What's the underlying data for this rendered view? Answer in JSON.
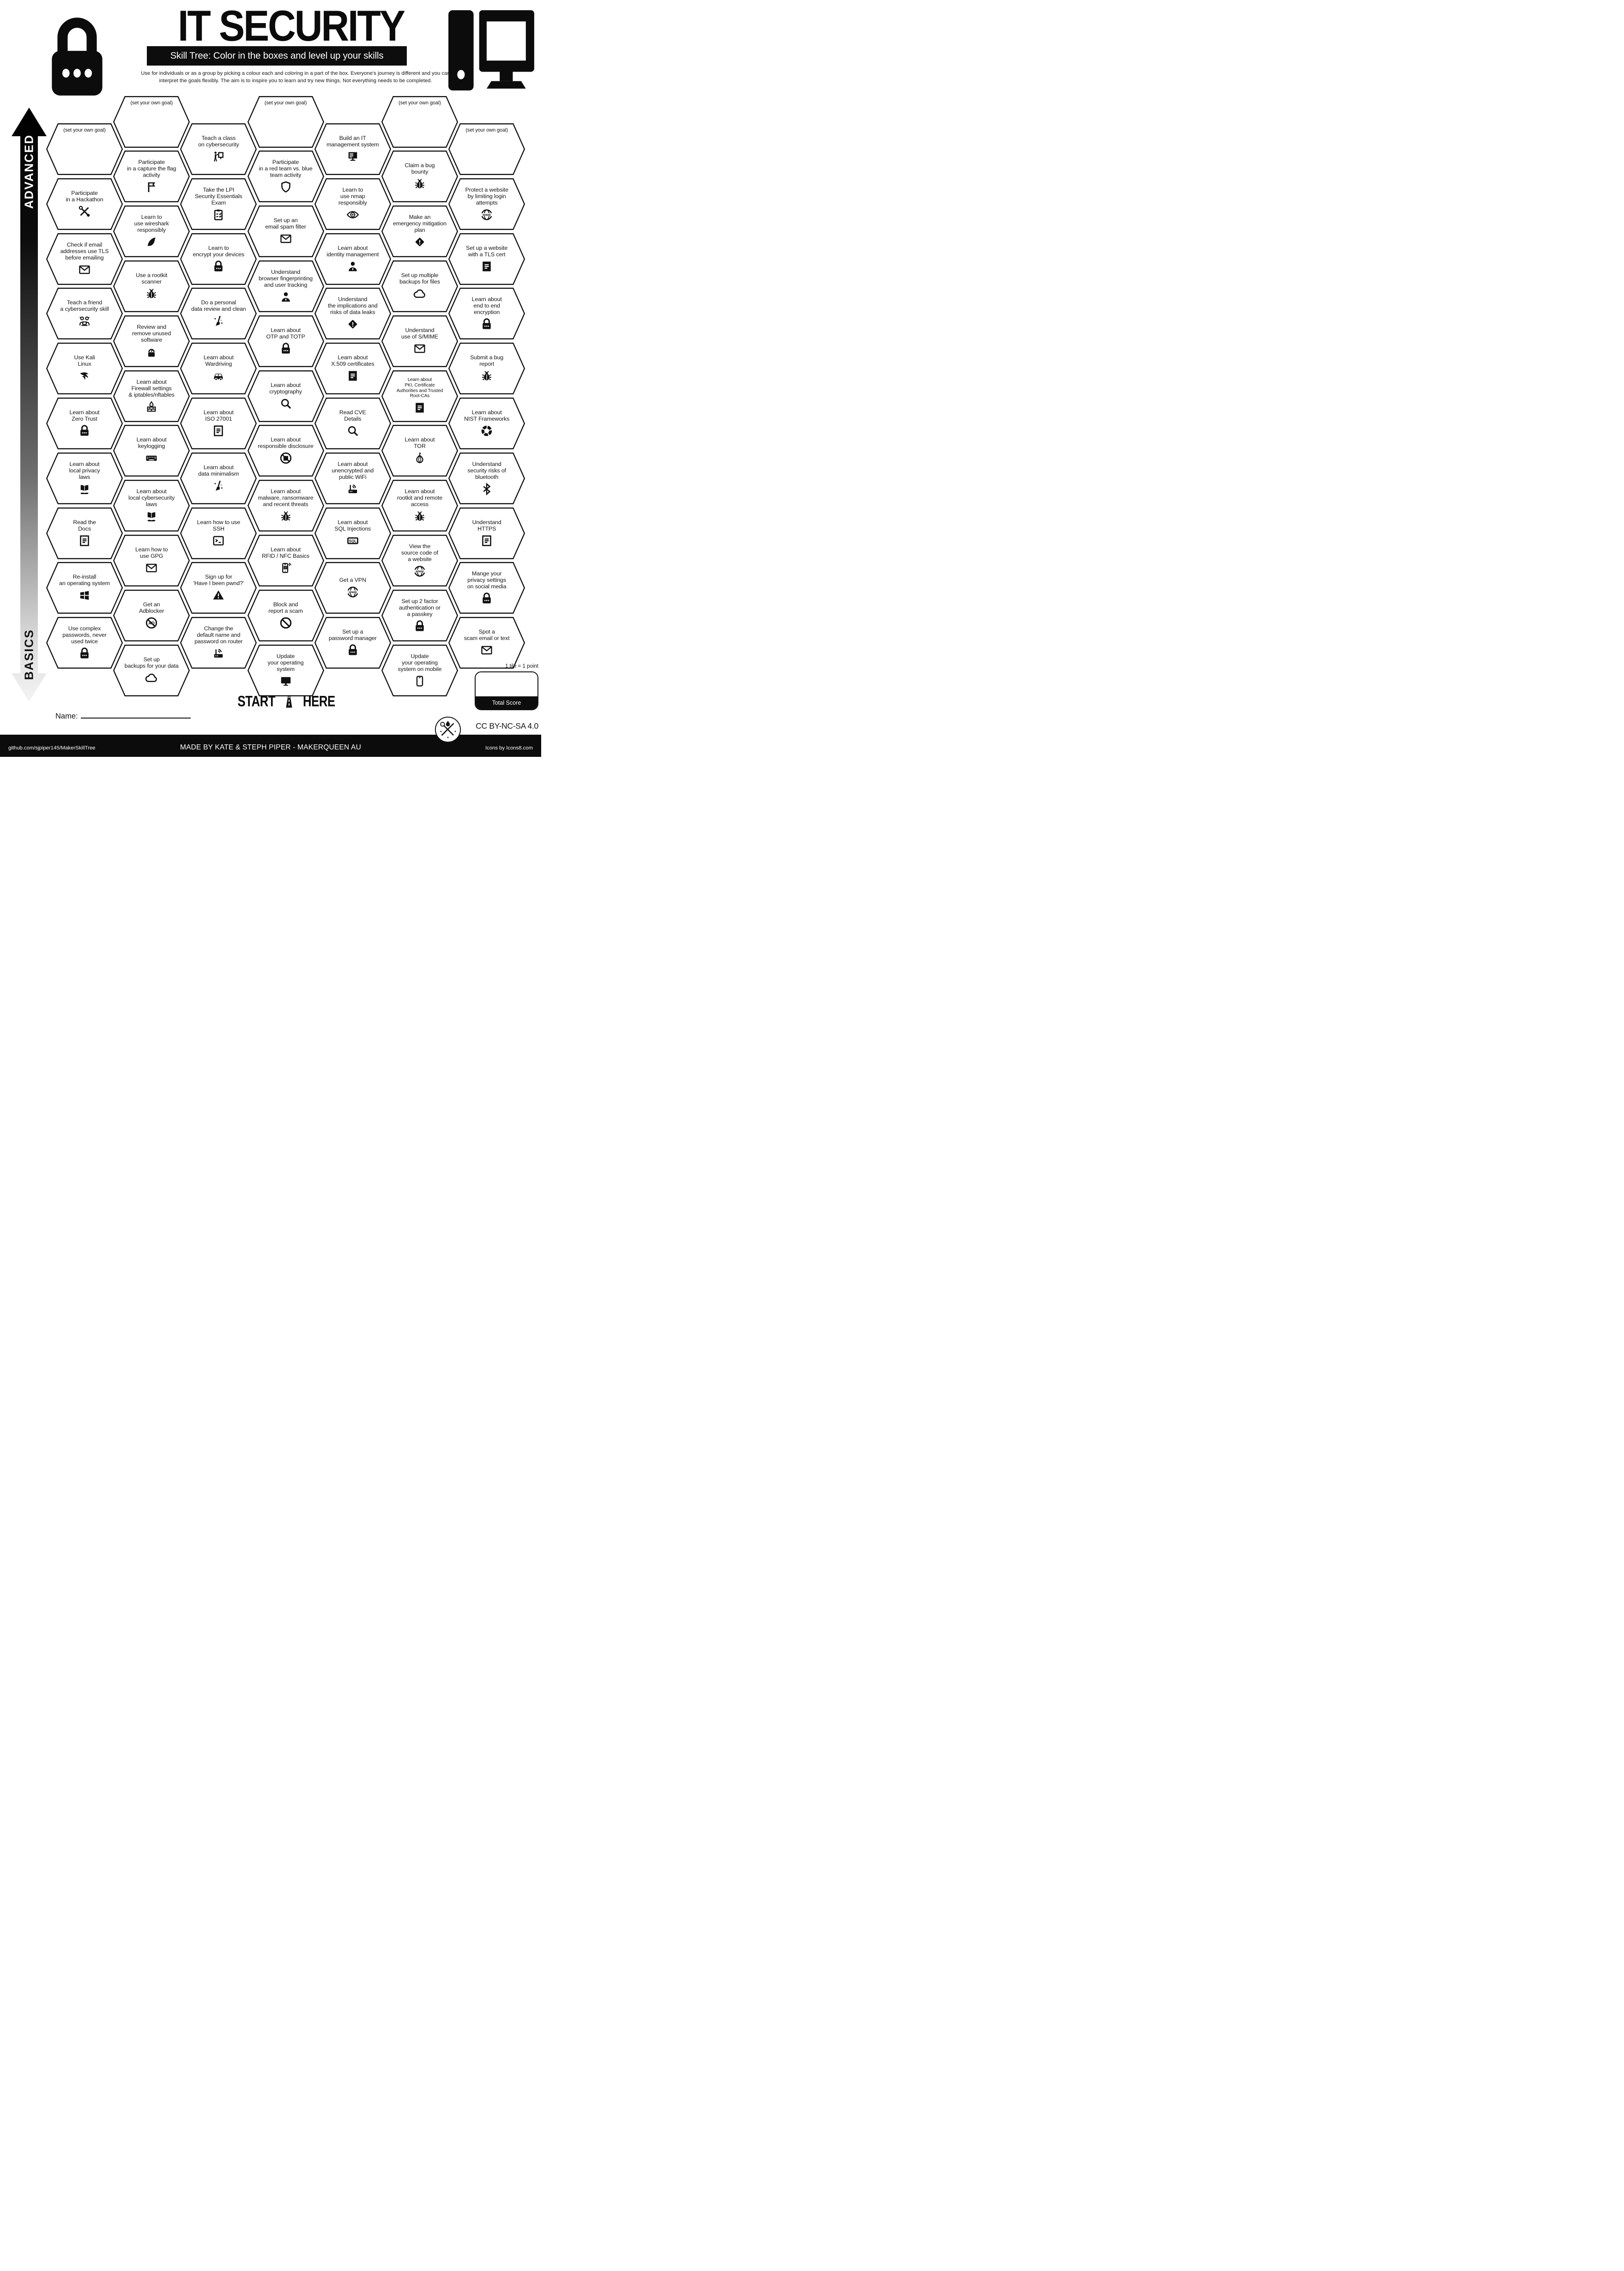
{
  "header": {
    "title": "IT SECURITY",
    "subtitle": "Skill Tree:  Color in the boxes and level up your skills",
    "description_line1": "Use for individuals or as a group by picking a colour each and coloring in a part of the box.  Everyone's journey is different and you can",
    "description_line2": "interpret the goals flexibly.  The aim is to inspire you to learn and try new things. Not everything needs to be completed."
  },
  "axis": {
    "top_label": "ADVANCED",
    "bottom_label": "BASICS"
  },
  "start_marker": {
    "start_label": "START",
    "here_label": "HERE"
  },
  "name_field": {
    "label": "Name:"
  },
  "scoring": {
    "note": "1 tile = 1 point",
    "total_label": "Total Score"
  },
  "license": {
    "text": "CC BY-NC-SA 4.0"
  },
  "footer": {
    "left": "github.com/sjpiper145/MakerSkillTree",
    "center": "MADE BY KATE & STEPH PIPER  -  MAKERQUEEN AU",
    "right": "Icons by Icons8.com"
  },
  "colors": {
    "ink": "#0d0d0d",
    "paper": "#ffffff"
  },
  "hexes": [
    {
      "c": 1,
      "r": 0,
      "goal": true,
      "text": "(set your own goal)",
      "icon": null
    },
    {
      "c": 1,
      "r": 1,
      "text": "Participate\nin a Hackathon",
      "icon": "tools"
    },
    {
      "c": 1,
      "r": 2,
      "text": "Check if email\naddresses use TLS\nbefore emailing",
      "icon": "envelope"
    },
    {
      "c": 1,
      "r": 3,
      "text": "Teach a friend\na cybersecurity skill",
      "icon": "people"
    },
    {
      "c": 1,
      "r": 4,
      "text": "Use Kali\nLinux",
      "icon": "kali"
    },
    {
      "c": 1,
      "r": 5,
      "text": "Learn about\nZero Trust",
      "icon": "lock"
    },
    {
      "c": 1,
      "r": 6,
      "text": "Learn about\nlocal privacy\nlaws",
      "icon": "lawbook"
    },
    {
      "c": 1,
      "r": 7,
      "text": "Read the\nDocs",
      "icon": "doc"
    },
    {
      "c": 1,
      "r": 8,
      "text": "Re-install\nan operating system",
      "icon": "windows"
    },
    {
      "c": 1,
      "r": 9,
      "text": "Use complex\npasswords, never\nused twice",
      "icon": "lock"
    },
    {
      "c": 2,
      "r": 0,
      "goal": true,
      "text": "(set your own goal)",
      "icon": null
    },
    {
      "c": 2,
      "r": 1,
      "text": "Participate\nin a capture the flag\nactivity",
      "icon": "flag"
    },
    {
      "c": 2,
      "r": 2,
      "text": "Learn to\nuse wireshark\nresponsibly",
      "icon": "shark"
    },
    {
      "c": 2,
      "r": 3,
      "text": "Use a rootkit\nscanner",
      "icon": "bug"
    },
    {
      "c": 2,
      "r": 4,
      "text": "Review and\nremove unused\nsoftware",
      "icon": "gaugelock"
    },
    {
      "c": 2,
      "r": 5,
      "text": "Learn about\nFirewall settings\n& iptables/nftables",
      "icon": "firewall"
    },
    {
      "c": 2,
      "r": 6,
      "text": "Learn about\nkeylogging",
      "icon": "keyboard"
    },
    {
      "c": 2,
      "r": 7,
      "text": "Learn about\nlocal cybersecurity\nlaws",
      "icon": "lawbook"
    },
    {
      "c": 2,
      "r": 8,
      "text": "Learn how to\nuse GPG",
      "icon": "envelope"
    },
    {
      "c": 2,
      "r": 9,
      "text": "Get an\nAdblocker",
      "icon": "adblock"
    },
    {
      "c": 2,
      "r": 10,
      "text": "Set up\nbackups for your data",
      "icon": "cloud"
    },
    {
      "c": 3,
      "r": 0,
      "text": "Teach a class\non cybersecurity",
      "icon": "presenter"
    },
    {
      "c": 3,
      "r": 1,
      "text": "Take the LPI\nSecurity Essentials\nExam",
      "icon": "clipboard"
    },
    {
      "c": 3,
      "r": 2,
      "text": "Learn to\nencrypt your devices",
      "icon": "lock"
    },
    {
      "c": 3,
      "r": 3,
      "text": "Do a personal\ndata review and clean",
      "icon": "broom"
    },
    {
      "c": 3,
      "r": 4,
      "text": "Learn about\nWardriving",
      "icon": "car"
    },
    {
      "c": 3,
      "r": 5,
      "text": "Learn about\nISO 27001",
      "icon": "doc"
    },
    {
      "c": 3,
      "r": 6,
      "text": "Learn about\ndata minimalism",
      "icon": "broom"
    },
    {
      "c": 3,
      "r": 7,
      "text": "Learn how to use\nSSH",
      "icon": "terminal"
    },
    {
      "c": 3,
      "r": 8,
      "text": "Sign up for\n'Have I been pwnd?'",
      "icon": "warning"
    },
    {
      "c": 3,
      "r": 9,
      "text": "Change the\ndefault name and\npassword on router",
      "icon": "router"
    },
    {
      "c": 4,
      "r": 0,
      "goal": true,
      "text": "(set your own goal)",
      "icon": null
    },
    {
      "c": 4,
      "r": 1,
      "text": "Participate\nin a red team vs. blue\nteam activity",
      "icon": "shield"
    },
    {
      "c": 4,
      "r": 2,
      "text": "Set up an\nemail spam filter",
      "icon": "envelope"
    },
    {
      "c": 4,
      "r": 3,
      "text": "Understand\nbrowser fingerprinting\nand user tracking",
      "icon": "person"
    },
    {
      "c": 4,
      "r": 4,
      "text": "Learn about\nOTP and TOTP",
      "icon": "lock"
    },
    {
      "c": 4,
      "r": 5,
      "text": "Learn about\ncryptography",
      "icon": "magnifier"
    },
    {
      "c": 4,
      "r": 6,
      "text": "Learn about\nresponsible disclosure",
      "icon": "nodisclosure"
    },
    {
      "c": 4,
      "r": 7,
      "text": "Learn about\nmalware, ransomware\nand recent threats",
      "icon": "bug"
    },
    {
      "c": 4,
      "r": 8,
      "text": "Learn about\nRFID / NFC Basics",
      "icon": "phonenfc"
    },
    {
      "c": 4,
      "r": 9,
      "text": "Block and\nreport a scam",
      "icon": "prohibition"
    },
    {
      "c": 4,
      "r": 10,
      "text": "Update\nyour operating\nsystem",
      "icon": "monitor"
    },
    {
      "c": 5,
      "r": 0,
      "text": "Build an IT\nmanagement system",
      "icon": "pc"
    },
    {
      "c": 5,
      "r": 1,
      "text": "Learn to\nuse nmap\nresponsibly",
      "icon": "eyetarget"
    },
    {
      "c": 5,
      "r": 2,
      "text": "Learn about\nidentity management",
      "icon": "person"
    },
    {
      "c": 5,
      "r": 3,
      "text": "Understand\nthe implications and\nrisks of data leaks",
      "icon": "diamondwarn"
    },
    {
      "c": 5,
      "r": 4,
      "text": "Learn about\nX.509 certificates",
      "icon": "cert"
    },
    {
      "c": 5,
      "r": 5,
      "text": "Read CVE\nDetails",
      "icon": "magnifier"
    },
    {
      "c": 5,
      "r": 6,
      "text": "Learn about\nunencrypted and\npublic WiFi",
      "icon": "router"
    },
    {
      "c": 5,
      "r": 7,
      "text": "Learn about\nSQL Injections",
      "icon": "sql"
    },
    {
      "c": 5,
      "r": 8,
      "text": "Get a VPN",
      "icon": "www"
    },
    {
      "c": 5,
      "r": 9,
      "text": "Set up a\npassword manager",
      "icon": "lock"
    },
    {
      "c": 6,
      "r": 0,
      "goal": true,
      "text": "(set your own goal)",
      "icon": null
    },
    {
      "c": 6,
      "r": 1,
      "text": "Claim a bug\nbounty",
      "icon": "bug"
    },
    {
      "c": 6,
      "r": 2,
      "text": "Make an\nemergency mitigation\nplan",
      "icon": "diamondwarn"
    },
    {
      "c": 6,
      "r": 3,
      "text": "Set up multiple\nbackups for files",
      "icon": "cloud"
    },
    {
      "c": 6,
      "r": 4,
      "text": "Understand\nuse of S/MIME",
      "icon": "envelope"
    },
    {
      "c": 6,
      "r": 5,
      "small": true,
      "text": "Learn about\nPKI, Certificate\nAuthorities and Trusted\nRoot-CAs",
      "icon": "cert"
    },
    {
      "c": 6,
      "r": 6,
      "text": "Learn about\nTOR",
      "icon": "onion"
    },
    {
      "c": 6,
      "r": 7,
      "text": "Learn about\nrootkit and remote\naccess",
      "icon": "bug"
    },
    {
      "c": 6,
      "r": 8,
      "text": "View the\nsource code of\na website",
      "icon": "www"
    },
    {
      "c": 6,
      "r": 9,
      "text": "Set up 2 factor\nauthentication or\na passkey",
      "icon": "lock"
    },
    {
      "c": 6,
      "r": 10,
      "text": "Update\nyour operating\nsystem on mobile",
      "icon": "smartphone"
    },
    {
      "c": 7,
      "r": 0,
      "goal": true,
      "text": "(set your own goal)",
      "icon": null
    },
    {
      "c": 7,
      "r": 1,
      "text": "Protect a website\nby limiting login\nattempts",
      "icon": "www"
    },
    {
      "c": 7,
      "r": 2,
      "text": "Set up a website\nwith a TLS cert",
      "icon": "cert"
    },
    {
      "c": 7,
      "r": 3,
      "text": "Learn about\nend to end\nencryption",
      "icon": "lock"
    },
    {
      "c": 7,
      "r": 4,
      "text": "Submit a bug\nreport",
      "icon": "bug"
    },
    {
      "c": 7,
      "r": 5,
      "text": "Learn about\nNIST Frameworks",
      "icon": "donut"
    },
    {
      "c": 7,
      "r": 6,
      "text": "Understand\nsecurity risks of\nbluetooth",
      "icon": "bluetooth"
    },
    {
      "c": 7,
      "r": 7,
      "text": "Understand\nHTTPS",
      "icon": "doc"
    },
    {
      "c": 7,
      "r": 8,
      "text": "Mange your\nprivacy settings\non social media",
      "icon": "lock"
    },
    {
      "c": 7,
      "r": 9,
      "text": "Spot a\nscam email or text",
      "icon": "envelope"
    }
  ]
}
